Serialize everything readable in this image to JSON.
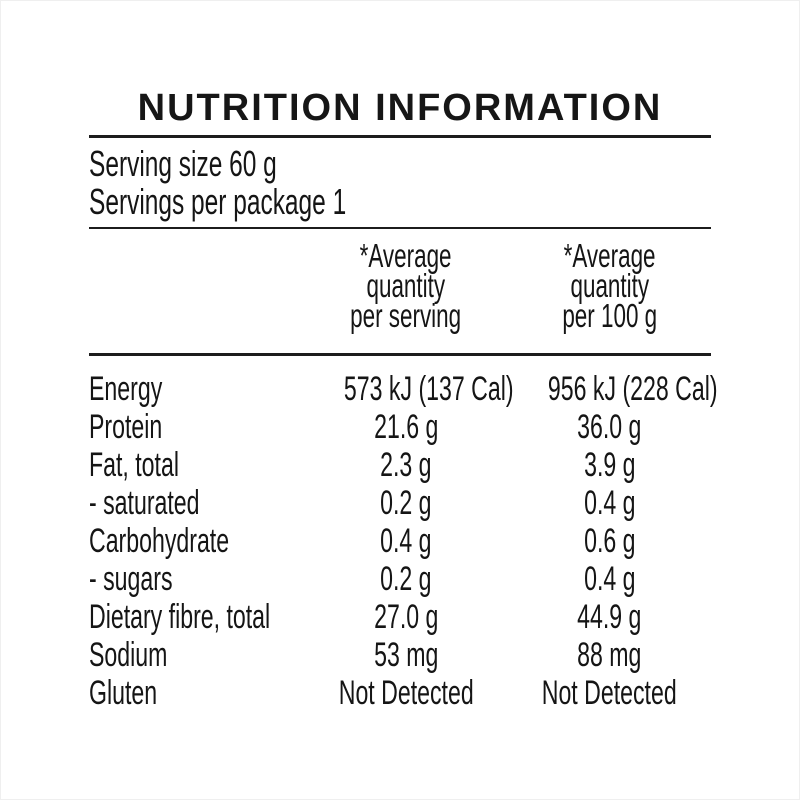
{
  "label": {
    "title": "NUTRITION INFORMATION",
    "serving_size_line": "Serving size 60 g",
    "servings_per_package_line": "Servings per package 1",
    "header": {
      "per_serving_lines": [
        "*Average",
        "quantity",
        "per serving"
      ],
      "per_100g_lines": [
        "*Average",
        "quantity",
        "per 100 g"
      ]
    },
    "rows": [
      {
        "nutrient": "Energy",
        "per_serving": "573 kJ (137 Cal)",
        "per_100g": "956 kJ (228 Cal)"
      },
      {
        "nutrient": "Protein",
        "per_serving": "21.6 g",
        "per_100g": "36.0 g"
      },
      {
        "nutrient": "Fat, total",
        "per_serving": "2.3 g",
        "per_100g": "3.9 g"
      },
      {
        "nutrient": "- saturated",
        "per_serving": "0.2 g",
        "per_100g": "0.4 g"
      },
      {
        "nutrient": "Carbohydrate",
        "per_serving": "0.4 g",
        "per_100g": "0.6 g"
      },
      {
        "nutrient": "- sugars",
        "per_serving": "0.2 g",
        "per_100g": "0.4 g"
      },
      {
        "nutrient": "Dietary fibre, total",
        "per_serving": "27.0 g",
        "per_100g": "44.9 g"
      },
      {
        "nutrient": "Sodium",
        "per_serving": "53 mg",
        "per_100g": "88 mg"
      },
      {
        "nutrient": "Gluten",
        "per_serving": "Not Detected",
        "per_100g": "Not Detected"
      }
    ],
    "colors": {
      "text": "#151515",
      "rule": "#1c1c1c",
      "background": "#ffffff"
    }
  },
  "chart_data": {
    "type": "table",
    "title": "NUTRITION INFORMATION",
    "columns": [
      "Nutrient",
      "*Average quantity per serving",
      "*Average quantity per 100 g"
    ],
    "rows": [
      [
        "Energy",
        "573 kJ (137 Cal)",
        "956 kJ (228 Cal)"
      ],
      [
        "Protein",
        "21.6 g",
        "36.0 g"
      ],
      [
        "Fat, total",
        "2.3 g",
        "3.9 g"
      ],
      [
        "- saturated",
        "0.2 g",
        "0.4 g"
      ],
      [
        "Carbohydrate",
        "0.4 g",
        "0.6 g"
      ],
      [
        "- sugars",
        "0.2 g",
        "0.4 g"
      ],
      [
        "Dietary fibre, total",
        "27.0 g",
        "44.9 g"
      ],
      [
        "Sodium",
        "53 mg",
        "88 mg"
      ],
      [
        "Gluten",
        "Not Detected",
        "Not Detected"
      ]
    ]
  }
}
